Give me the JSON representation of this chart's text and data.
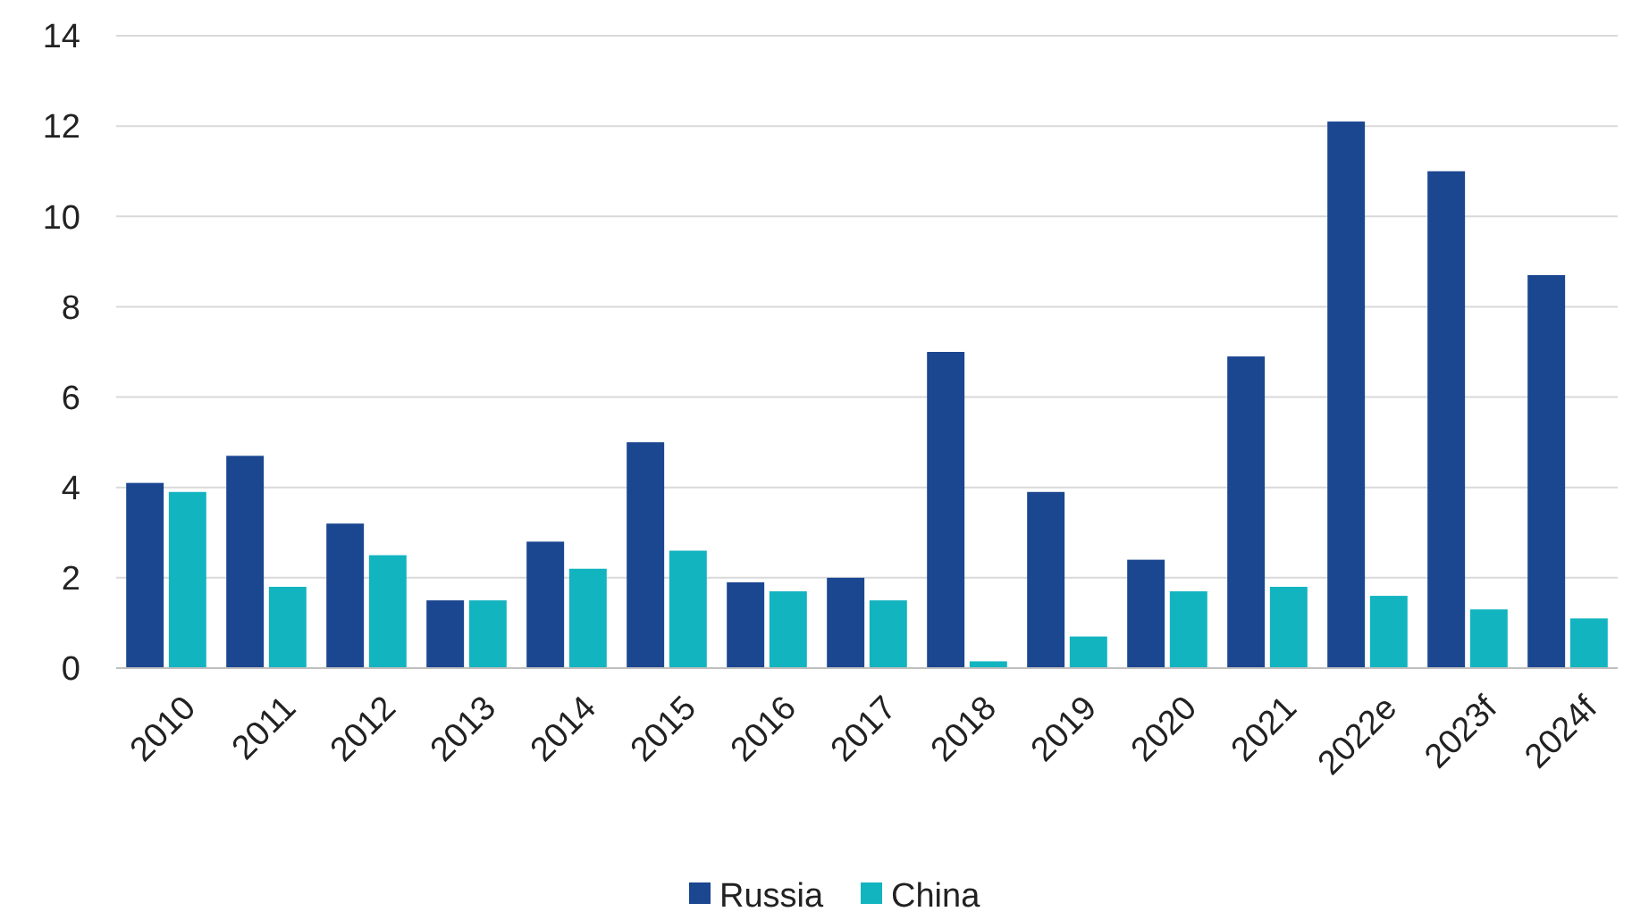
{
  "chart_data": {
    "type": "bar",
    "categories": [
      "2010",
      "2011",
      "2012",
      "2013",
      "2014",
      "2015",
      "2016",
      "2017",
      "2018",
      "2019",
      "2020",
      "2021",
      "2022e",
      "2023f",
      "2024f"
    ],
    "series": [
      {
        "name": "Russia",
        "color": "#1b4690",
        "values": [
          4.1,
          4.7,
          3.2,
          1.5,
          2.8,
          5.0,
          1.9,
          2.0,
          7.0,
          3.9,
          2.4,
          6.9,
          12.1,
          11.0,
          8.7
        ]
      },
      {
        "name": "China",
        "color": "#12b4c0",
        "values": [
          3.9,
          1.8,
          2.5,
          1.5,
          2.2,
          2.6,
          1.7,
          1.5,
          0.15,
          0.7,
          1.7,
          1.8,
          1.6,
          1.3,
          1.1
        ]
      }
    ],
    "ylim": [
      0,
      14
    ],
    "yticks": [
      0,
      2,
      4,
      6,
      8,
      10,
      12,
      14
    ],
    "grid": "y",
    "legend": "bottom"
  }
}
